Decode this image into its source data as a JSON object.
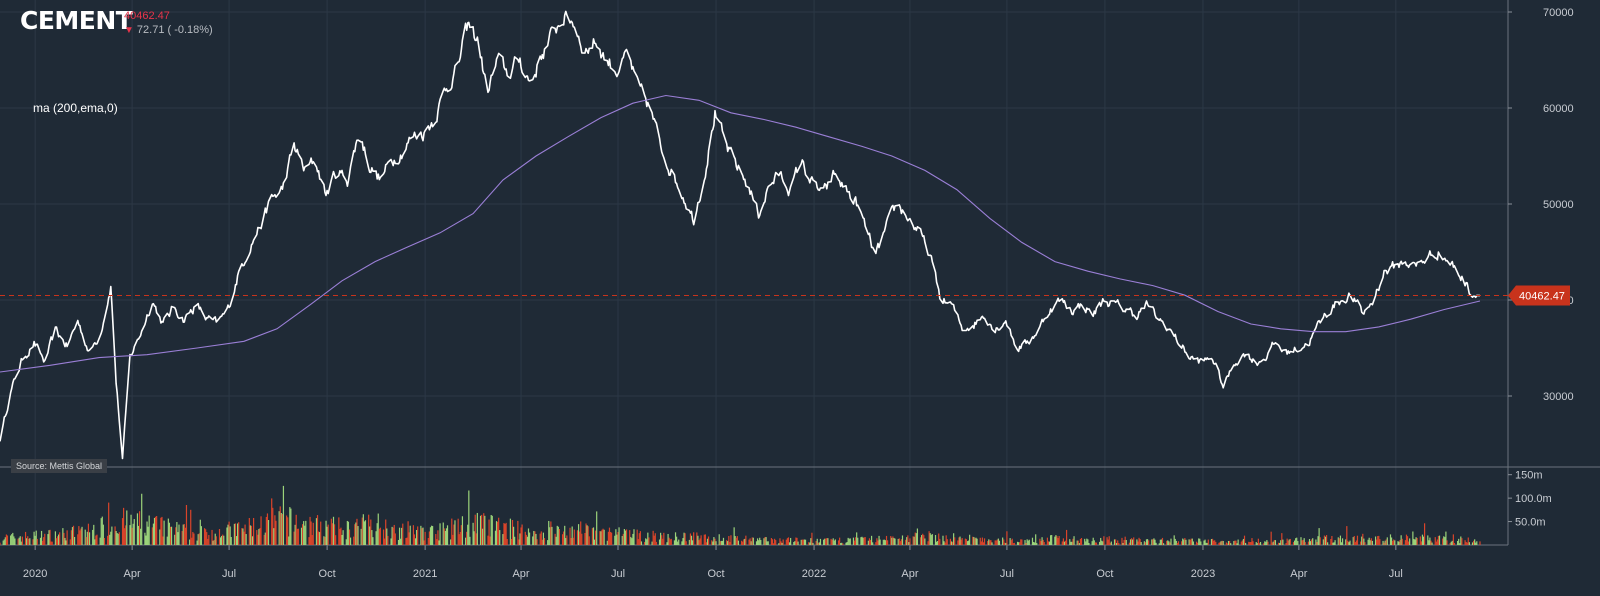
{
  "header": {
    "symbol": "CEMENT",
    "last_price": "40462.47",
    "change_text": "72.71 ( -0.18%)",
    "indicator_label": "ma (200,ema,0)",
    "source": "Source: Mettis Global"
  },
  "colors": {
    "background": "#1f2a36",
    "price_line": "#ffffff",
    "ma_line": "#9a7fd6",
    "last_price_marker": "#c8331c",
    "volume_up": "#9bd37a",
    "volume_down": "#d9442a",
    "grid": "#2c3846"
  },
  "chart_data": {
    "type": "line",
    "title": "CEMENT",
    "x_start": "2019-11-29",
    "x_end": "2023-09-18",
    "y_ticks": [
      30000,
      40000,
      50000,
      60000,
      70000
    ],
    "ylim": [
      20000,
      71000
    ],
    "volume_ticks": [
      "50.0m",
      "100.0m",
      "150m"
    ],
    "volume_ylim": [
      0,
      160
    ],
    "x_ticks": [
      {
        "date": "2020-01-01",
        "label": "2020"
      },
      {
        "date": "2020-04-01",
        "label": "Apr"
      },
      {
        "date": "2020-07-01",
        "label": "Jul"
      },
      {
        "date": "2020-10-01",
        "label": "Oct"
      },
      {
        "date": "2021-01-01",
        "label": "2021"
      },
      {
        "date": "2021-04-01",
        "label": "Apr"
      },
      {
        "date": "2021-07-01",
        "label": "Jul"
      },
      {
        "date": "2021-10-01",
        "label": "Oct"
      },
      {
        "date": "2022-01-01",
        "label": "2022"
      },
      {
        "date": "2022-04-01",
        "label": "Apr"
      },
      {
        "date": "2022-07-01",
        "label": "Jul"
      },
      {
        "date": "2022-10-01",
        "label": "Oct"
      },
      {
        "date": "2023-01-01",
        "label": "2023"
      },
      {
        "date": "2023-04-01",
        "label": "Apr"
      },
      {
        "date": "2023-07-01",
        "label": "Jul"
      }
    ],
    "last_value": 40462.47,
    "series": [
      {
        "name": "CEMENT",
        "points": [
          [
            "2019-11-29",
            25500
          ],
          [
            "2019-12-09",
            30500
          ],
          [
            "2019-12-20",
            33800
          ],
          [
            "2019-12-31",
            35500
          ],
          [
            "2020-01-10",
            33500
          ],
          [
            "2020-01-20",
            36800
          ],
          [
            "2020-01-31",
            35200
          ],
          [
            "2020-02-10",
            37800
          ],
          [
            "2020-02-21",
            34500
          ],
          [
            "2020-03-02",
            36500
          ],
          [
            "2020-03-12",
            41500
          ],
          [
            "2020-03-17",
            31500
          ],
          [
            "2020-03-23",
            23500
          ],
          [
            "2020-03-30",
            34000
          ],
          [
            "2020-04-10",
            36800
          ],
          [
            "2020-04-20",
            40000
          ],
          [
            "2020-04-30",
            37500
          ],
          [
            "2020-05-10",
            39200
          ],
          [
            "2020-05-20",
            38000
          ],
          [
            "2020-05-31",
            39500
          ],
          [
            "2020-06-10",
            38000
          ],
          [
            "2020-06-20",
            37500
          ],
          [
            "2020-06-30",
            39000
          ],
          [
            "2020-07-10",
            42800
          ],
          [
            "2020-07-20",
            45500
          ],
          [
            "2020-07-31",
            48000
          ],
          [
            "2020-08-10",
            50500
          ],
          [
            "2020-08-20",
            51500
          ],
          [
            "2020-08-31",
            56000
          ],
          [
            "2020-09-10",
            53500
          ],
          [
            "2020-09-20",
            54500
          ],
          [
            "2020-09-30",
            51000
          ],
          [
            "2020-10-10",
            53500
          ],
          [
            "2020-10-20",
            52500
          ],
          [
            "2020-10-31",
            57500
          ],
          [
            "2020-11-10",
            54000
          ],
          [
            "2020-11-20",
            52500
          ],
          [
            "2020-11-30",
            54500
          ],
          [
            "2020-12-10",
            55500
          ],
          [
            "2020-12-20",
            57000
          ],
          [
            "2020-12-31",
            57500
          ],
          [
            "2021-01-10",
            59000
          ],
          [
            "2021-01-20",
            62000
          ],
          [
            "2021-01-31",
            64000
          ],
          [
            "2021-02-10",
            68500
          ],
          [
            "2021-02-20",
            67000
          ],
          [
            "2021-02-28",
            61500
          ],
          [
            "2021-03-10",
            65000
          ],
          [
            "2021-03-20",
            63500
          ],
          [
            "2021-03-31",
            65000
          ],
          [
            "2021-04-10",
            62500
          ],
          [
            "2021-04-20",
            65500
          ],
          [
            "2021-04-30",
            67500
          ],
          [
            "2021-05-10",
            69500
          ],
          [
            "2021-05-20",
            69000
          ],
          [
            "2021-05-31",
            66000
          ],
          [
            "2021-06-10",
            67000
          ],
          [
            "2021-06-20",
            65000
          ],
          [
            "2021-06-30",
            64000
          ],
          [
            "2021-07-10",
            65500
          ],
          [
            "2021-07-20",
            62000
          ],
          [
            "2021-07-31",
            60000
          ],
          [
            "2021-08-10",
            56000
          ],
          [
            "2021-08-20",
            53500
          ],
          [
            "2021-08-31",
            51000
          ],
          [
            "2021-09-10",
            48500
          ],
          [
            "2021-09-20",
            53000
          ],
          [
            "2021-09-30",
            59500
          ],
          [
            "2021-10-10",
            56000
          ],
          [
            "2021-10-20",
            54000
          ],
          [
            "2021-10-31",
            52000
          ],
          [
            "2021-11-10",
            49000
          ],
          [
            "2021-11-20",
            52000
          ],
          [
            "2021-11-30",
            53000
          ],
          [
            "2021-12-10",
            51500
          ],
          [
            "2021-12-20",
            54500
          ],
          [
            "2021-12-31",
            52000
          ],
          [
            "2022-01-10",
            51000
          ],
          [
            "2022-01-20",
            53000
          ],
          [
            "2022-01-31",
            51500
          ],
          [
            "2022-02-10",
            50000
          ],
          [
            "2022-02-20",
            47000
          ],
          [
            "2022-02-28",
            44500
          ],
          [
            "2022-03-10",
            47500
          ],
          [
            "2022-03-20",
            50000
          ],
          [
            "2022-03-31",
            48500
          ],
          [
            "2022-04-10",
            47000
          ],
          [
            "2022-04-20",
            44500
          ],
          [
            "2022-04-30",
            40000
          ],
          [
            "2022-05-10",
            39500
          ],
          [
            "2022-05-20",
            37000
          ],
          [
            "2022-05-31",
            37500
          ],
          [
            "2022-06-10",
            38500
          ],
          [
            "2022-06-20",
            37000
          ],
          [
            "2022-06-30",
            38000
          ],
          [
            "2022-07-10",
            35000
          ],
          [
            "2022-07-20",
            35500
          ],
          [
            "2022-07-31",
            37000
          ],
          [
            "2022-08-10",
            39000
          ],
          [
            "2022-08-20",
            40000
          ],
          [
            "2022-08-31",
            39000
          ],
          [
            "2022-09-10",
            39500
          ],
          [
            "2022-09-20",
            38500
          ],
          [
            "2022-09-30",
            40000
          ],
          [
            "2022-10-10",
            39500
          ],
          [
            "2022-10-20",
            39000
          ],
          [
            "2022-10-31",
            38500
          ],
          [
            "2022-11-10",
            39500
          ],
          [
            "2022-11-20",
            38000
          ],
          [
            "2022-11-30",
            37000
          ],
          [
            "2022-12-10",
            35500
          ],
          [
            "2022-12-20",
            34000
          ],
          [
            "2022-12-31",
            33500
          ],
          [
            "2023-01-10",
            34000
          ],
          [
            "2023-01-20",
            31000
          ],
          [
            "2023-01-31",
            33500
          ],
          [
            "2023-02-10",
            34500
          ],
          [
            "2023-02-20",
            33500
          ],
          [
            "2023-02-28",
            34000
          ],
          [
            "2023-03-10",
            35500
          ],
          [
            "2023-03-20",
            34500
          ],
          [
            "2023-03-31",
            35000
          ],
          [
            "2023-04-10",
            35500
          ],
          [
            "2023-04-20",
            37500
          ],
          [
            "2023-04-30",
            39000
          ],
          [
            "2023-05-10",
            40000
          ],
          [
            "2023-05-20",
            40500
          ],
          [
            "2023-05-31",
            38500
          ],
          [
            "2023-06-10",
            40000
          ],
          [
            "2023-06-20",
            43000
          ],
          [
            "2023-06-30",
            43500
          ],
          [
            "2023-07-10",
            44000
          ],
          [
            "2023-07-20",
            43500
          ],
          [
            "2023-07-31",
            44500
          ],
          [
            "2023-08-10",
            45000
          ],
          [
            "2023-08-20",
            44000
          ],
          [
            "2023-08-31",
            42500
          ],
          [
            "2023-09-10",
            40800
          ],
          [
            "2023-09-18",
            40462.47
          ]
        ]
      },
      {
        "name": "ma (200,ema,0)",
        "points": [
          [
            "2019-11-29",
            32500
          ],
          [
            "2020-01-15",
            33200
          ],
          [
            "2020-03-01",
            34000
          ],
          [
            "2020-04-15",
            34300
          ],
          [
            "2020-06-01",
            35000
          ],
          [
            "2020-07-15",
            35700
          ],
          [
            "2020-08-15",
            37000
          ],
          [
            "2020-09-15",
            39500
          ],
          [
            "2020-10-15",
            42000
          ],
          [
            "2020-11-15",
            44000
          ],
          [
            "2020-12-15",
            45500
          ],
          [
            "2021-01-15",
            47000
          ],
          [
            "2021-02-15",
            49000
          ],
          [
            "2021-03-15",
            52500
          ],
          [
            "2021-04-15",
            55000
          ],
          [
            "2021-05-15",
            57000
          ],
          [
            "2021-06-15",
            59000
          ],
          [
            "2021-07-15",
            60500
          ],
          [
            "2021-08-15",
            61300
          ],
          [
            "2021-09-15",
            60800
          ],
          [
            "2021-10-15",
            59500
          ],
          [
            "2021-11-15",
            58800
          ],
          [
            "2021-12-15",
            58000
          ],
          [
            "2022-01-15",
            57000
          ],
          [
            "2022-02-15",
            56000
          ],
          [
            "2022-03-15",
            55000
          ],
          [
            "2022-04-15",
            53500
          ],
          [
            "2022-05-15",
            51500
          ],
          [
            "2022-06-15",
            48500
          ],
          [
            "2022-07-15",
            46000
          ],
          [
            "2022-08-15",
            44000
          ],
          [
            "2022-09-15",
            43000
          ],
          [
            "2022-10-15",
            42200
          ],
          [
            "2022-11-15",
            41500
          ],
          [
            "2022-12-15",
            40500
          ],
          [
            "2023-01-15",
            38800
          ],
          [
            "2023-02-15",
            37500
          ],
          [
            "2023-03-15",
            37000
          ],
          [
            "2023-04-15",
            36700
          ],
          [
            "2023-05-15",
            36700
          ],
          [
            "2023-06-15",
            37200
          ],
          [
            "2023-07-15",
            38000
          ],
          [
            "2023-08-15",
            39000
          ],
          [
            "2023-09-18",
            39900
          ]
        ]
      }
    ],
    "volume_profile_m": [
      [
        "2019-11-29",
        20
      ],
      [
        "2020-01-15",
        28
      ],
      [
        "2020-02-20",
        38
      ],
      [
        "2020-03-20",
        65
      ],
      [
        "2020-04-20",
        55
      ],
      [
        "2020-06-01",
        32
      ],
      [
        "2020-07-15",
        45
      ],
      [
        "2020-08-20",
        70
      ],
      [
        "2020-09-15",
        55
      ],
      [
        "2020-10-20",
        45
      ],
      [
        "2020-11-15",
        60
      ],
      [
        "2020-12-15",
        35
      ],
      [
        "2021-01-15",
        38
      ],
      [
        "2021-02-15",
        60
      ],
      [
        "2021-03-15",
        50
      ],
      [
        "2021-04-15",
        30
      ],
      [
        "2021-05-15",
        40
      ],
      [
        "2021-06-15",
        35
      ],
      [
        "2021-07-15",
        28
      ],
      [
        "2021-08-15",
        22
      ],
      [
        "2021-09-15",
        22
      ],
      [
        "2021-10-15",
        18
      ],
      [
        "2021-11-15",
        14
      ],
      [
        "2022-01-15",
        12
      ],
      [
        "2022-03-15",
        18
      ],
      [
        "2022-04-15",
        25
      ],
      [
        "2022-05-15",
        16
      ],
      [
        "2022-07-15",
        12
      ],
      [
        "2022-08-15",
        18
      ],
      [
        "2022-09-15",
        16
      ],
      [
        "2022-11-15",
        13
      ],
      [
        "2023-01-15",
        11
      ],
      [
        "2023-03-15",
        13
      ],
      [
        "2023-05-15",
        18
      ],
      [
        "2023-06-15",
        16
      ],
      [
        "2023-07-15",
        22
      ],
      [
        "2023-09-18",
        12
      ]
    ]
  }
}
